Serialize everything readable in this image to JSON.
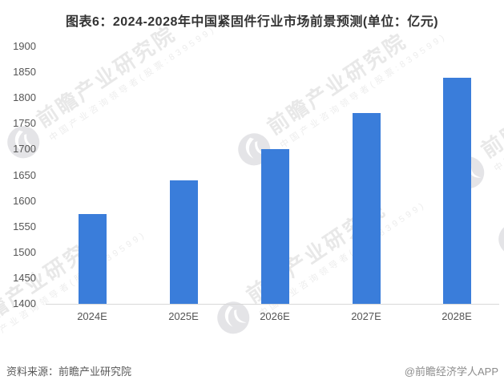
{
  "chart_data": {
    "type": "bar",
    "title": "图表6：2024-2028年中国紧固件行业市场前景预测(单位：亿元)",
    "unit": "亿元",
    "categories": [
      "2024E",
      "2025E",
      "2026E",
      "2027E",
      "2028E"
    ],
    "values": [
      1575,
      1640,
      1700,
      1770,
      1840
    ],
    "xlabel": "",
    "ylabel": "",
    "ylim": [
      1400,
      1900
    ],
    "ytick_step": 50,
    "yticks": [
      1400,
      1450,
      1500,
      1550,
      1600,
      1650,
      1700,
      1750,
      1800,
      1850,
      1900
    ],
    "grid": false,
    "legend": false,
    "bar_color": "#3A7DDA",
    "axis_line_color": "#d8d8d8",
    "tick_label_color": "#555555"
  },
  "watermark": {
    "brand": "前瞻产业研究院",
    "tagline": "中国产业咨询领导者(股票:839599)",
    "logo_icon": "qianzhan-bird-logo"
  },
  "footer": {
    "source": "资料来源：前瞻产业研究院",
    "credit": "@前瞻经济学人APP"
  }
}
